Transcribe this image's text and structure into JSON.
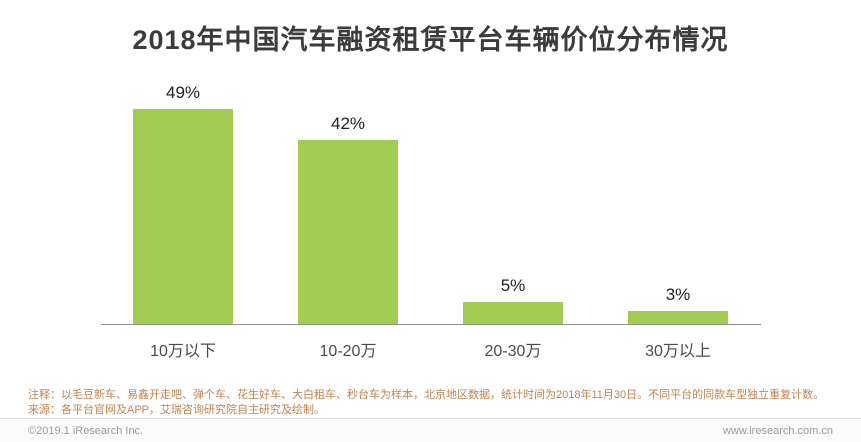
{
  "title": "2018年中国汽车融资租赁平台车辆价位分布情况",
  "chart_data": {
    "type": "bar",
    "title": "2018年中国汽车融资租赁平台车辆价位分布情况",
    "categories": [
      "10万以下",
      "10-20万",
      "20-30万",
      "30万以上"
    ],
    "values": [
      49,
      42,
      5,
      3
    ],
    "value_labels": [
      "49%",
      "42%",
      "5%",
      "3%"
    ],
    "unit": "%",
    "xlabel": "",
    "ylabel": "",
    "ylim": [
      0,
      55
    ],
    "bar_color": "#a3cc52",
    "grid": false,
    "legend": "none"
  },
  "notes": {
    "line1": "注释：以毛豆新车、易鑫开走吧、弹个车、花生好车、大白租车、秒台车为样本，北京地区数据，统计时间为2018年11月30日。不同平台的同款车型独立重复计数。",
    "line2": "来源：各平台官网及APP，艾瑞咨询研究院自主研究及绘制。"
  },
  "footer": {
    "copyright": "©2019.1 iResearch Inc.",
    "website": "www.iresearch.com.cn"
  }
}
